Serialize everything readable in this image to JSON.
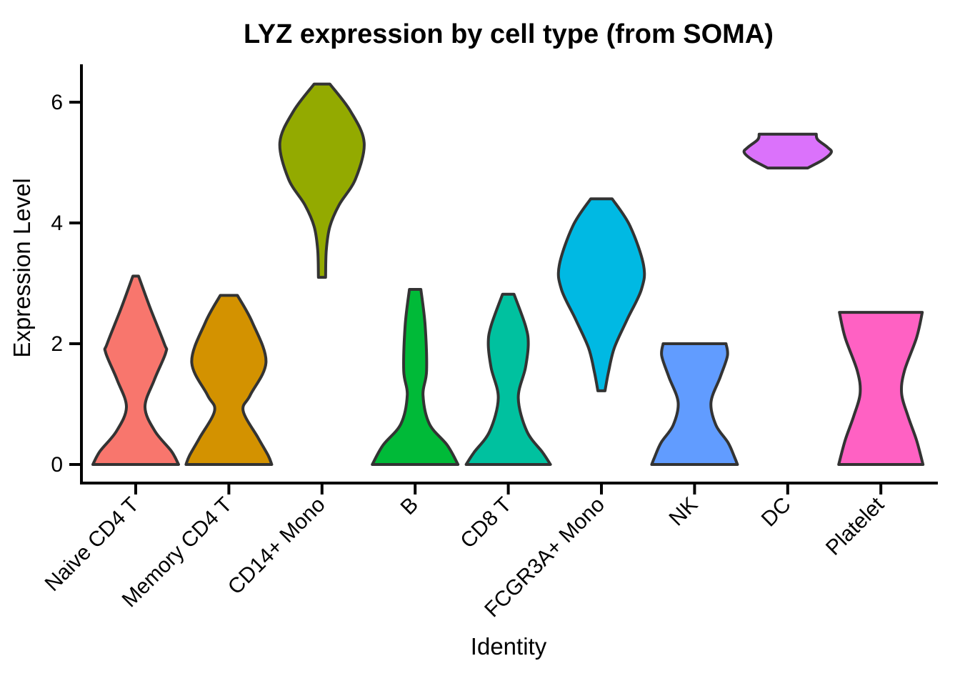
{
  "title": "LYZ expression by cell type (from SOMA)",
  "axes": {
    "x": {
      "label": "Identity"
    },
    "y": {
      "label": "Expression Level",
      "tick_labels": [
        "0",
        "2",
        "4",
        "6"
      ]
    }
  },
  "chart_data": {
    "type": "violin",
    "title": "LYZ expression by cell type (from SOMA)",
    "xlabel": "Identity",
    "ylabel": "Expression Level",
    "ylim": [
      0,
      6.65
    ],
    "y_ticks": [
      0,
      2,
      4,
      6
    ],
    "grid": false,
    "legend": false,
    "categories": [
      "Naive CD4 T",
      "Memory CD4 T",
      "CD14+ Mono",
      "B",
      "CD8 T",
      "FCGR3A+ Mono",
      "NK",
      "DC",
      "Platelet"
    ],
    "series": [
      {
        "name": "Naive CD4 T",
        "color": "#F8766D",
        "expression_range": [
          0,
          3.12
        ],
        "width_profile": [
          [
            3.12,
            4
          ],
          [
            2.6,
            20
          ],
          [
            2.0,
            40
          ],
          [
            1.85,
            42
          ],
          [
            1.4,
            26
          ],
          [
            0.95,
            13
          ],
          [
            0.55,
            27
          ],
          [
            0.22,
            50
          ],
          [
            0,
            60
          ]
        ]
      },
      {
        "name": "Memory CD4 T",
        "color": "#D39200",
        "expression_range": [
          0,
          2.8
        ],
        "width_profile": [
          [
            2.8,
            12
          ],
          [
            2.35,
            33
          ],
          [
            1.7,
            52
          ],
          [
            1.15,
            30
          ],
          [
            0.89,
            20
          ],
          [
            0.44,
            41
          ],
          [
            0.15,
            55
          ],
          [
            0,
            60
          ]
        ]
      },
      {
        "name": "CD14+ Mono",
        "color": "#93AA00",
        "expression_range": [
          3.1,
          6.3
        ],
        "width_profile": [
          [
            6.3,
            11
          ],
          [
            5.85,
            40
          ],
          [
            5.33,
            59
          ],
          [
            4.73,
            47
          ],
          [
            4.3,
            24
          ],
          [
            3.94,
            11
          ],
          [
            3.55,
            6
          ],
          [
            3.1,
            5
          ]
        ]
      },
      {
        "name": "B",
        "color": "#00BA38",
        "expression_range": [
          0,
          2.9
        ],
        "width_profile": [
          [
            2.9,
            8
          ],
          [
            2.3,
            14
          ],
          [
            1.55,
            16
          ],
          [
            1.15,
            11
          ],
          [
            0.67,
            20
          ],
          [
            0.32,
            45
          ],
          [
            0,
            60
          ]
        ]
      },
      {
        "name": "CD8 T",
        "color": "#00C19F",
        "expression_range": [
          0,
          2.82
        ],
        "width_profile": [
          [
            2.82,
            8
          ],
          [
            2.3,
            24
          ],
          [
            2.0,
            28
          ],
          [
            1.6,
            24
          ],
          [
            1.1,
            14
          ],
          [
            0.55,
            26
          ],
          [
            0.2,
            48
          ],
          [
            0,
            59
          ]
        ]
      },
      {
        "name": "FCGR3A+ Mono",
        "color": "#00B9E3",
        "expression_range": [
          1.22,
          4.4
        ],
        "width_profile": [
          [
            4.4,
            15
          ],
          [
            3.95,
            40
          ],
          [
            3.3,
            59
          ],
          [
            2.9,
            56
          ],
          [
            2.4,
            36
          ],
          [
            1.93,
            18
          ],
          [
            1.54,
            10
          ],
          [
            1.22,
            5
          ]
        ]
      },
      {
        "name": "NK",
        "color": "#619CFF",
        "expression_range": [
          0,
          2.0
        ],
        "width_profile": [
          [
            2.0,
            44
          ],
          [
            1.8,
            46
          ],
          [
            1.45,
            36
          ],
          [
            1.03,
            23
          ],
          [
            0.65,
            30
          ],
          [
            0.36,
            47
          ],
          [
            0.12,
            56
          ],
          [
            0,
            60
          ]
        ]
      },
      {
        "name": "DC",
        "color": "#DB72FB",
        "expression_range": [
          4.91,
          5.47
        ],
        "width_profile": [
          [
            5.47,
            40
          ],
          [
            5.38,
            42
          ],
          [
            5.25,
            56
          ],
          [
            5.17,
            61
          ],
          [
            5.05,
            50
          ],
          [
            4.91,
            28
          ]
        ]
      },
      {
        "name": "Platelet",
        "color": "#FF61C3",
        "expression_range": [
          0,
          2.52
        ],
        "width_profile": [
          [
            2.52,
            58
          ],
          [
            2.1,
            50
          ],
          [
            1.55,
            33
          ],
          [
            1.18,
            29
          ],
          [
            0.8,
            38
          ],
          [
            0.4,
            50
          ],
          [
            0,
            59
          ]
        ]
      }
    ],
    "style": {
      "outline_color": "#333333",
      "axis_color": "#000000",
      "text_color": "#000000",
      "background": "#FFFFFF"
    }
  }
}
